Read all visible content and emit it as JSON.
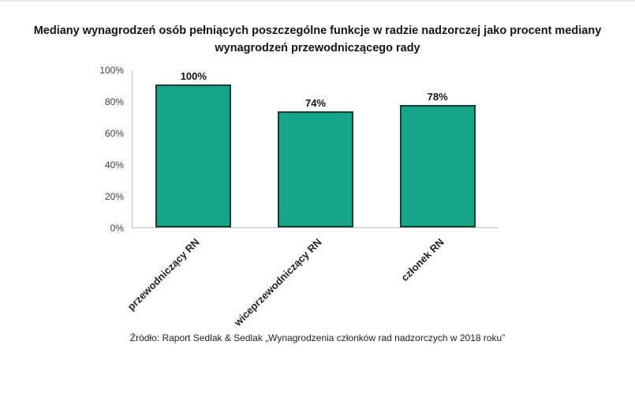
{
  "page": {
    "title": "Mediany wynagrodzeń osób pełniących poszczególne funkcje w radzie nadzorczej jako procent mediany wynagrodzeń przewodniczącego rady",
    "source": "Źródło: Raport Sedlak & Sedlak „Wynagrodzenia członków rad nadzorczych w 2018 roku”"
  },
  "chart_data": {
    "type": "bar",
    "title": "Mediany wynagrodzeń osób pełniących poszczególne funkcje w radzie nadzorczej jako procent mediany wynagrodzeń przewodniczącego rady",
    "categories": [
      "przewodniczący RN",
      "wiceprzewodniczący RN",
      "członek RN"
    ],
    "values": [
      100,
      74,
      78
    ],
    "value_labels": [
      "100%",
      "74%",
      "78%"
    ],
    "yticks": [
      "0%",
      "20%",
      "40%",
      "60%",
      "80%",
      "100%"
    ],
    "ylim": [
      0,
      100
    ],
    "xlabel": "",
    "ylabel": "",
    "grid": false,
    "legend": "none",
    "bar_color": "#17a589",
    "bar_border_color": "#0d3f35",
    "source": "Źródło: Raport Sedlak & Sedlak „Wynagrodzenia członków rad nadzorczych w 2018 roku”"
  }
}
